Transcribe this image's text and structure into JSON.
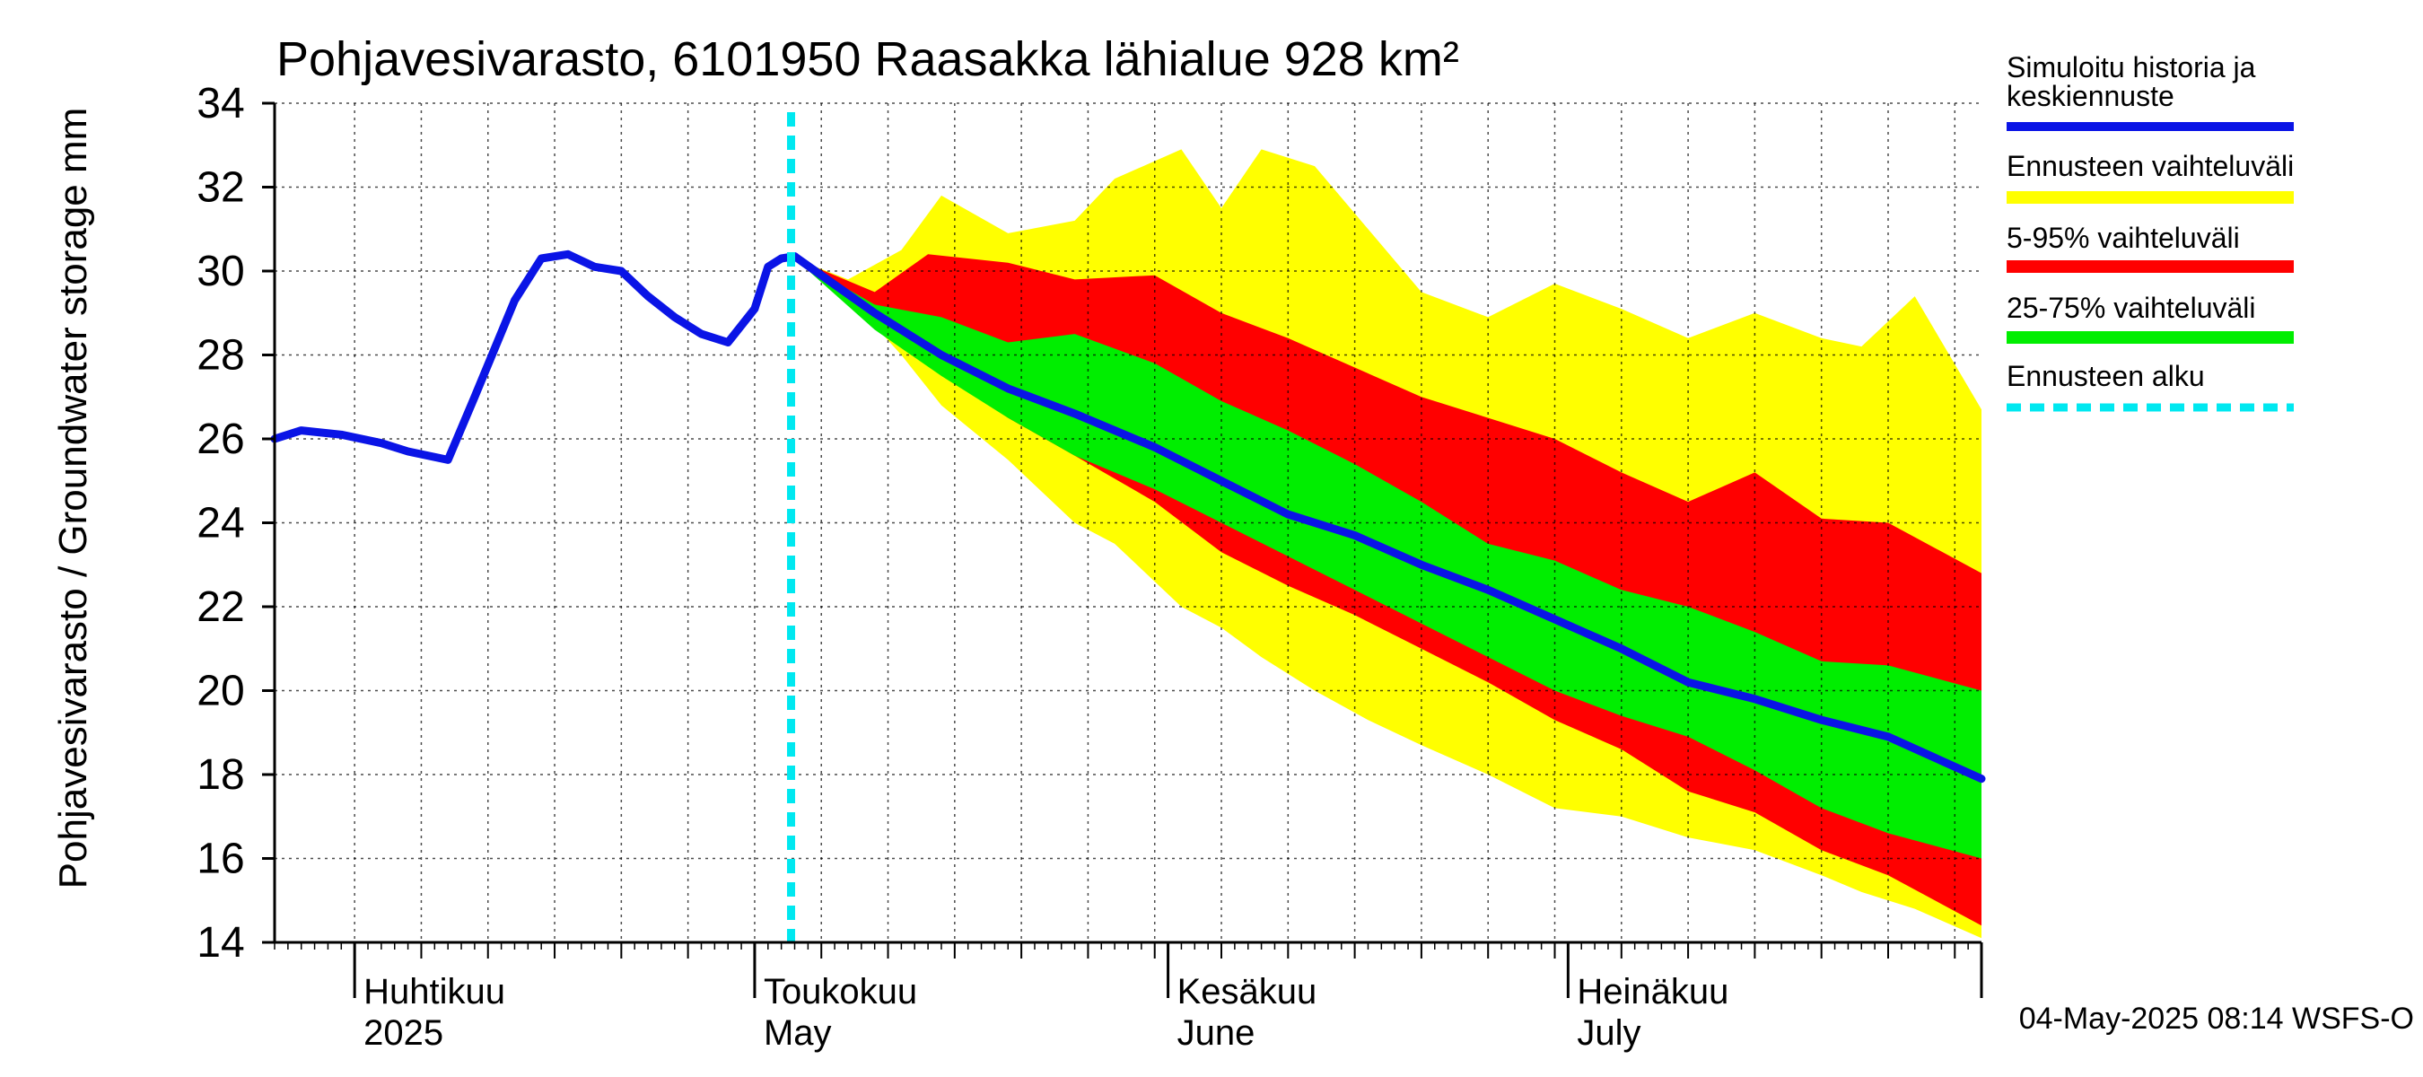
{
  "chart_data": {
    "type": "area",
    "title": "Pohjavesivarasto, 6101950 Raasakka lähialue 928 km²",
    "ylabel": "Pohjavesivarasto / Groundwater storage   mm",
    "ylim": [
      14,
      34
    ],
    "yticks": [
      14,
      16,
      18,
      20,
      22,
      24,
      26,
      28,
      30,
      32,
      34
    ],
    "xlim": [
      "2025-03-26",
      "2025-08-01"
    ],
    "grid": true,
    "legend_position": "right",
    "forecast_start": "2025-05-04",
    "month_labels": [
      {
        "date": "2025-04-01",
        "fi": "Huhtikuu",
        "en": "2025"
      },
      {
        "date": "2025-05-01",
        "fi": "Toukokuu",
        "en": "May"
      },
      {
        "date": "2025-06-01",
        "fi": "Kesäkuu",
        "en": "June"
      },
      {
        "date": "2025-07-01",
        "fi": "Heinäkuu",
        "en": "July"
      }
    ],
    "footer": "04-May-2025 08:14 WSFS-O",
    "colors": {
      "history": "#0a14e6",
      "range": "#ffff00",
      "p5_95": "#ff0000",
      "p25_75": "#00ee00",
      "forecast_start": "#00e8f0"
    },
    "legend": {
      "history": "Simuloitu historia ja keskiennuste",
      "range": "Ennusteen vaihteluväli",
      "p5_95": "5-95% vaihteluväli",
      "p25_75": "25-75% vaihteluväli",
      "forecast_start": "Ennusteen alku"
    },
    "series": {
      "history": {
        "x": [
          "2025-03-26",
          "2025-03-28",
          "2025-03-31",
          "2025-04-03",
          "2025-04-05",
          "2025-04-08",
          "2025-04-10",
          "2025-04-13",
          "2025-04-15",
          "2025-04-17",
          "2025-04-19",
          "2025-04-21",
          "2025-04-23",
          "2025-04-25",
          "2025-04-27",
          "2025-04-29",
          "2025-05-01",
          "2025-05-02",
          "2025-05-03",
          "2025-05-04"
        ],
        "y": [
          26.0,
          26.2,
          26.1,
          25.9,
          25.7,
          25.5,
          27.0,
          29.3,
          30.3,
          30.4,
          30.1,
          30.0,
          29.4,
          28.9,
          28.5,
          28.3,
          29.1,
          30.1,
          30.3,
          30.35
        ]
      },
      "median": {
        "x": [
          "2025-05-04",
          "2025-05-10",
          "2025-05-15",
          "2025-05-20",
          "2025-05-25",
          "2025-05-31",
          "2025-06-05",
          "2025-06-10",
          "2025-06-15",
          "2025-06-20",
          "2025-06-25",
          "2025-06-30",
          "2025-07-05",
          "2025-07-10",
          "2025-07-15",
          "2025-07-20",
          "2025-07-25",
          "2025-08-01"
        ],
        "y": [
          30.35,
          29.0,
          28.0,
          27.2,
          26.6,
          25.8,
          25.0,
          24.2,
          23.7,
          23.0,
          22.4,
          21.7,
          21.0,
          20.2,
          19.8,
          19.3,
          18.9,
          17.9
        ]
      },
      "range": {
        "x": [
          "2025-05-04",
          "2025-05-08",
          "2025-05-12",
          "2025-05-15",
          "2025-05-20",
          "2025-05-25",
          "2025-05-28",
          "2025-06-02",
          "2025-06-05",
          "2025-06-08",
          "2025-06-12",
          "2025-06-16",
          "2025-06-20",
          "2025-06-25",
          "2025-06-30",
          "2025-07-05",
          "2025-07-10",
          "2025-07-15",
          "2025-07-20",
          "2025-07-23",
          "2025-07-27",
          "2025-08-01"
        ],
        "upper": [
          30.3,
          29.8,
          30.5,
          31.8,
          30.9,
          31.2,
          32.2,
          32.9,
          31.5,
          32.9,
          32.5,
          31.0,
          29.5,
          28.9,
          29.7,
          29.1,
          28.4,
          29.0,
          28.4,
          28.2,
          29.4,
          26.7
        ],
        "lower": [
          30.3,
          29.4,
          28.0,
          26.8,
          25.5,
          24.0,
          23.5,
          22.0,
          21.5,
          20.8,
          20.0,
          19.3,
          18.7,
          18.0,
          17.2,
          17.0,
          16.5,
          16.2,
          15.6,
          15.2,
          14.8,
          14.1
        ]
      },
      "p5_95": {
        "x": [
          "2025-05-04",
          "2025-05-10",
          "2025-05-14",
          "2025-05-20",
          "2025-05-25",
          "2025-05-31",
          "2025-06-05",
          "2025-06-10",
          "2025-06-15",
          "2025-06-20",
          "2025-06-25",
          "2025-06-30",
          "2025-07-05",
          "2025-07-10",
          "2025-07-15",
          "2025-07-20",
          "2025-07-25",
          "2025-08-01"
        ],
        "upper": [
          30.3,
          29.5,
          30.4,
          30.2,
          29.8,
          29.9,
          29.0,
          28.4,
          27.7,
          27.0,
          26.5,
          26.0,
          25.2,
          24.5,
          25.2,
          24.1,
          24.0,
          22.8
        ],
        "lower": [
          30.3,
          28.8,
          27.8,
          26.5,
          25.6,
          24.5,
          23.3,
          22.5,
          21.8,
          21.0,
          20.2,
          19.3,
          18.6,
          17.6,
          17.1,
          16.2,
          15.6,
          14.4
        ]
      },
      "p25_75": {
        "x": [
          "2025-05-04",
          "2025-05-10",
          "2025-05-15",
          "2025-05-20",
          "2025-05-25",
          "2025-05-31",
          "2025-06-05",
          "2025-06-10",
          "2025-06-15",
          "2025-06-20",
          "2025-06-25",
          "2025-06-30",
          "2025-07-05",
          "2025-07-10",
          "2025-07-15",
          "2025-07-20",
          "2025-07-25",
          "2025-08-01"
        ],
        "upper": [
          30.3,
          29.2,
          28.9,
          28.3,
          28.5,
          27.8,
          26.9,
          26.2,
          25.4,
          24.5,
          23.5,
          23.1,
          22.4,
          22.0,
          21.4,
          20.7,
          20.6,
          20.0
        ],
        "lower": [
          30.3,
          28.6,
          27.5,
          26.5,
          25.6,
          24.8,
          24.0,
          23.2,
          22.4,
          21.6,
          20.8,
          20.0,
          19.4,
          18.9,
          18.1,
          17.2,
          16.6,
          16.0
        ]
      }
    }
  }
}
